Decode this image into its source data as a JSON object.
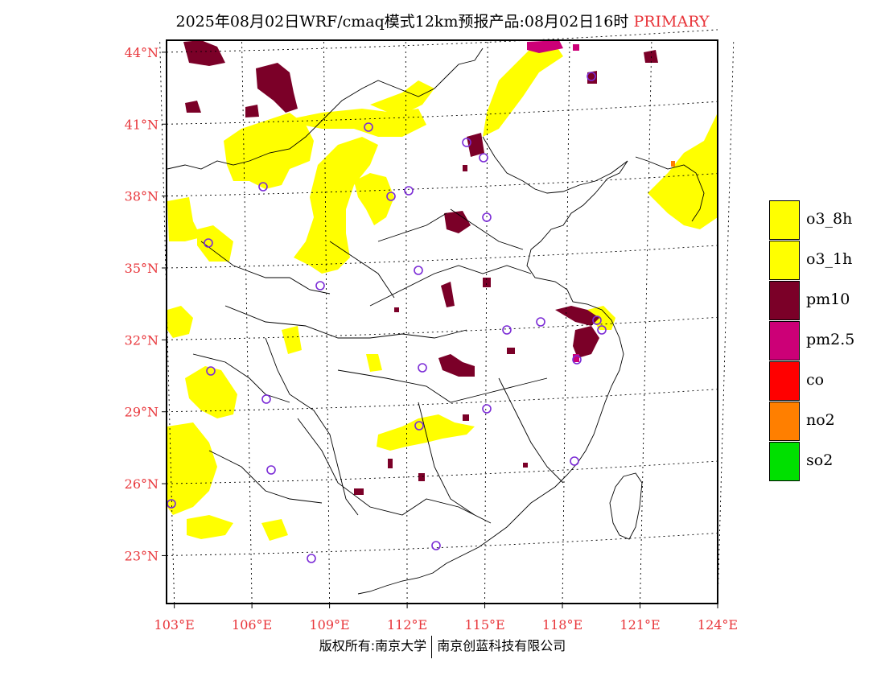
{
  "title": {
    "text": "2025年08月02日WRF/cmaq模式12km预报产品:08月02日16时",
    "pollutant": "PRIMARY"
  },
  "axes": {
    "latitudes": [
      {
        "value": 23,
        "label": "23°N"
      },
      {
        "value": 26,
        "label": "26°N"
      },
      {
        "value": 29,
        "label": "29°N"
      },
      {
        "value": 32,
        "label": "32°N"
      },
      {
        "value": 35,
        "label": "35°N"
      },
      {
        "value": 38,
        "label": "38°N"
      },
      {
        "value": 41,
        "label": "41°N"
      },
      {
        "value": 44,
        "label": "44°N"
      }
    ],
    "longitudes": [
      {
        "value": 103,
        "label": "103°E"
      },
      {
        "value": 106,
        "label": "106°E"
      },
      {
        "value": 109,
        "label": "109°E"
      },
      {
        "value": 112,
        "label": "112°E"
      },
      {
        "value": 115,
        "label": "115°E"
      },
      {
        "value": 118,
        "label": "118°E"
      },
      {
        "value": 121,
        "label": "121°E"
      },
      {
        "value": 124,
        "label": "124°E"
      }
    ],
    "lon_range": [
      102.7,
      124
    ],
    "lat_range": [
      21.0,
      44.5
    ]
  },
  "legend": [
    {
      "label": "o3_8h",
      "color": "#ffff00"
    },
    {
      "label": "o3_1h",
      "color": "#ffff00"
    },
    {
      "label": "pm10",
      "color": "#7b0028"
    },
    {
      "label": "pm2.5",
      "color": "#cc0077"
    },
    {
      "label": "co",
      "color": "#ff0000"
    },
    {
      "label": "no2",
      "color": "#ff7f00"
    },
    {
      "label": "so2",
      "color": "#00e000"
    }
  ],
  "copyright": {
    "left": "版权所有:南京大学",
    "right": "南京创蓝科技有限公司"
  },
  "colors": {
    "o3": "#ffff00",
    "pm10": "#7b0028",
    "pm25": "#cc0077",
    "no2": "#ff7f00",
    "station": "#7b2bd6",
    "label": "#e8353a"
  }
}
